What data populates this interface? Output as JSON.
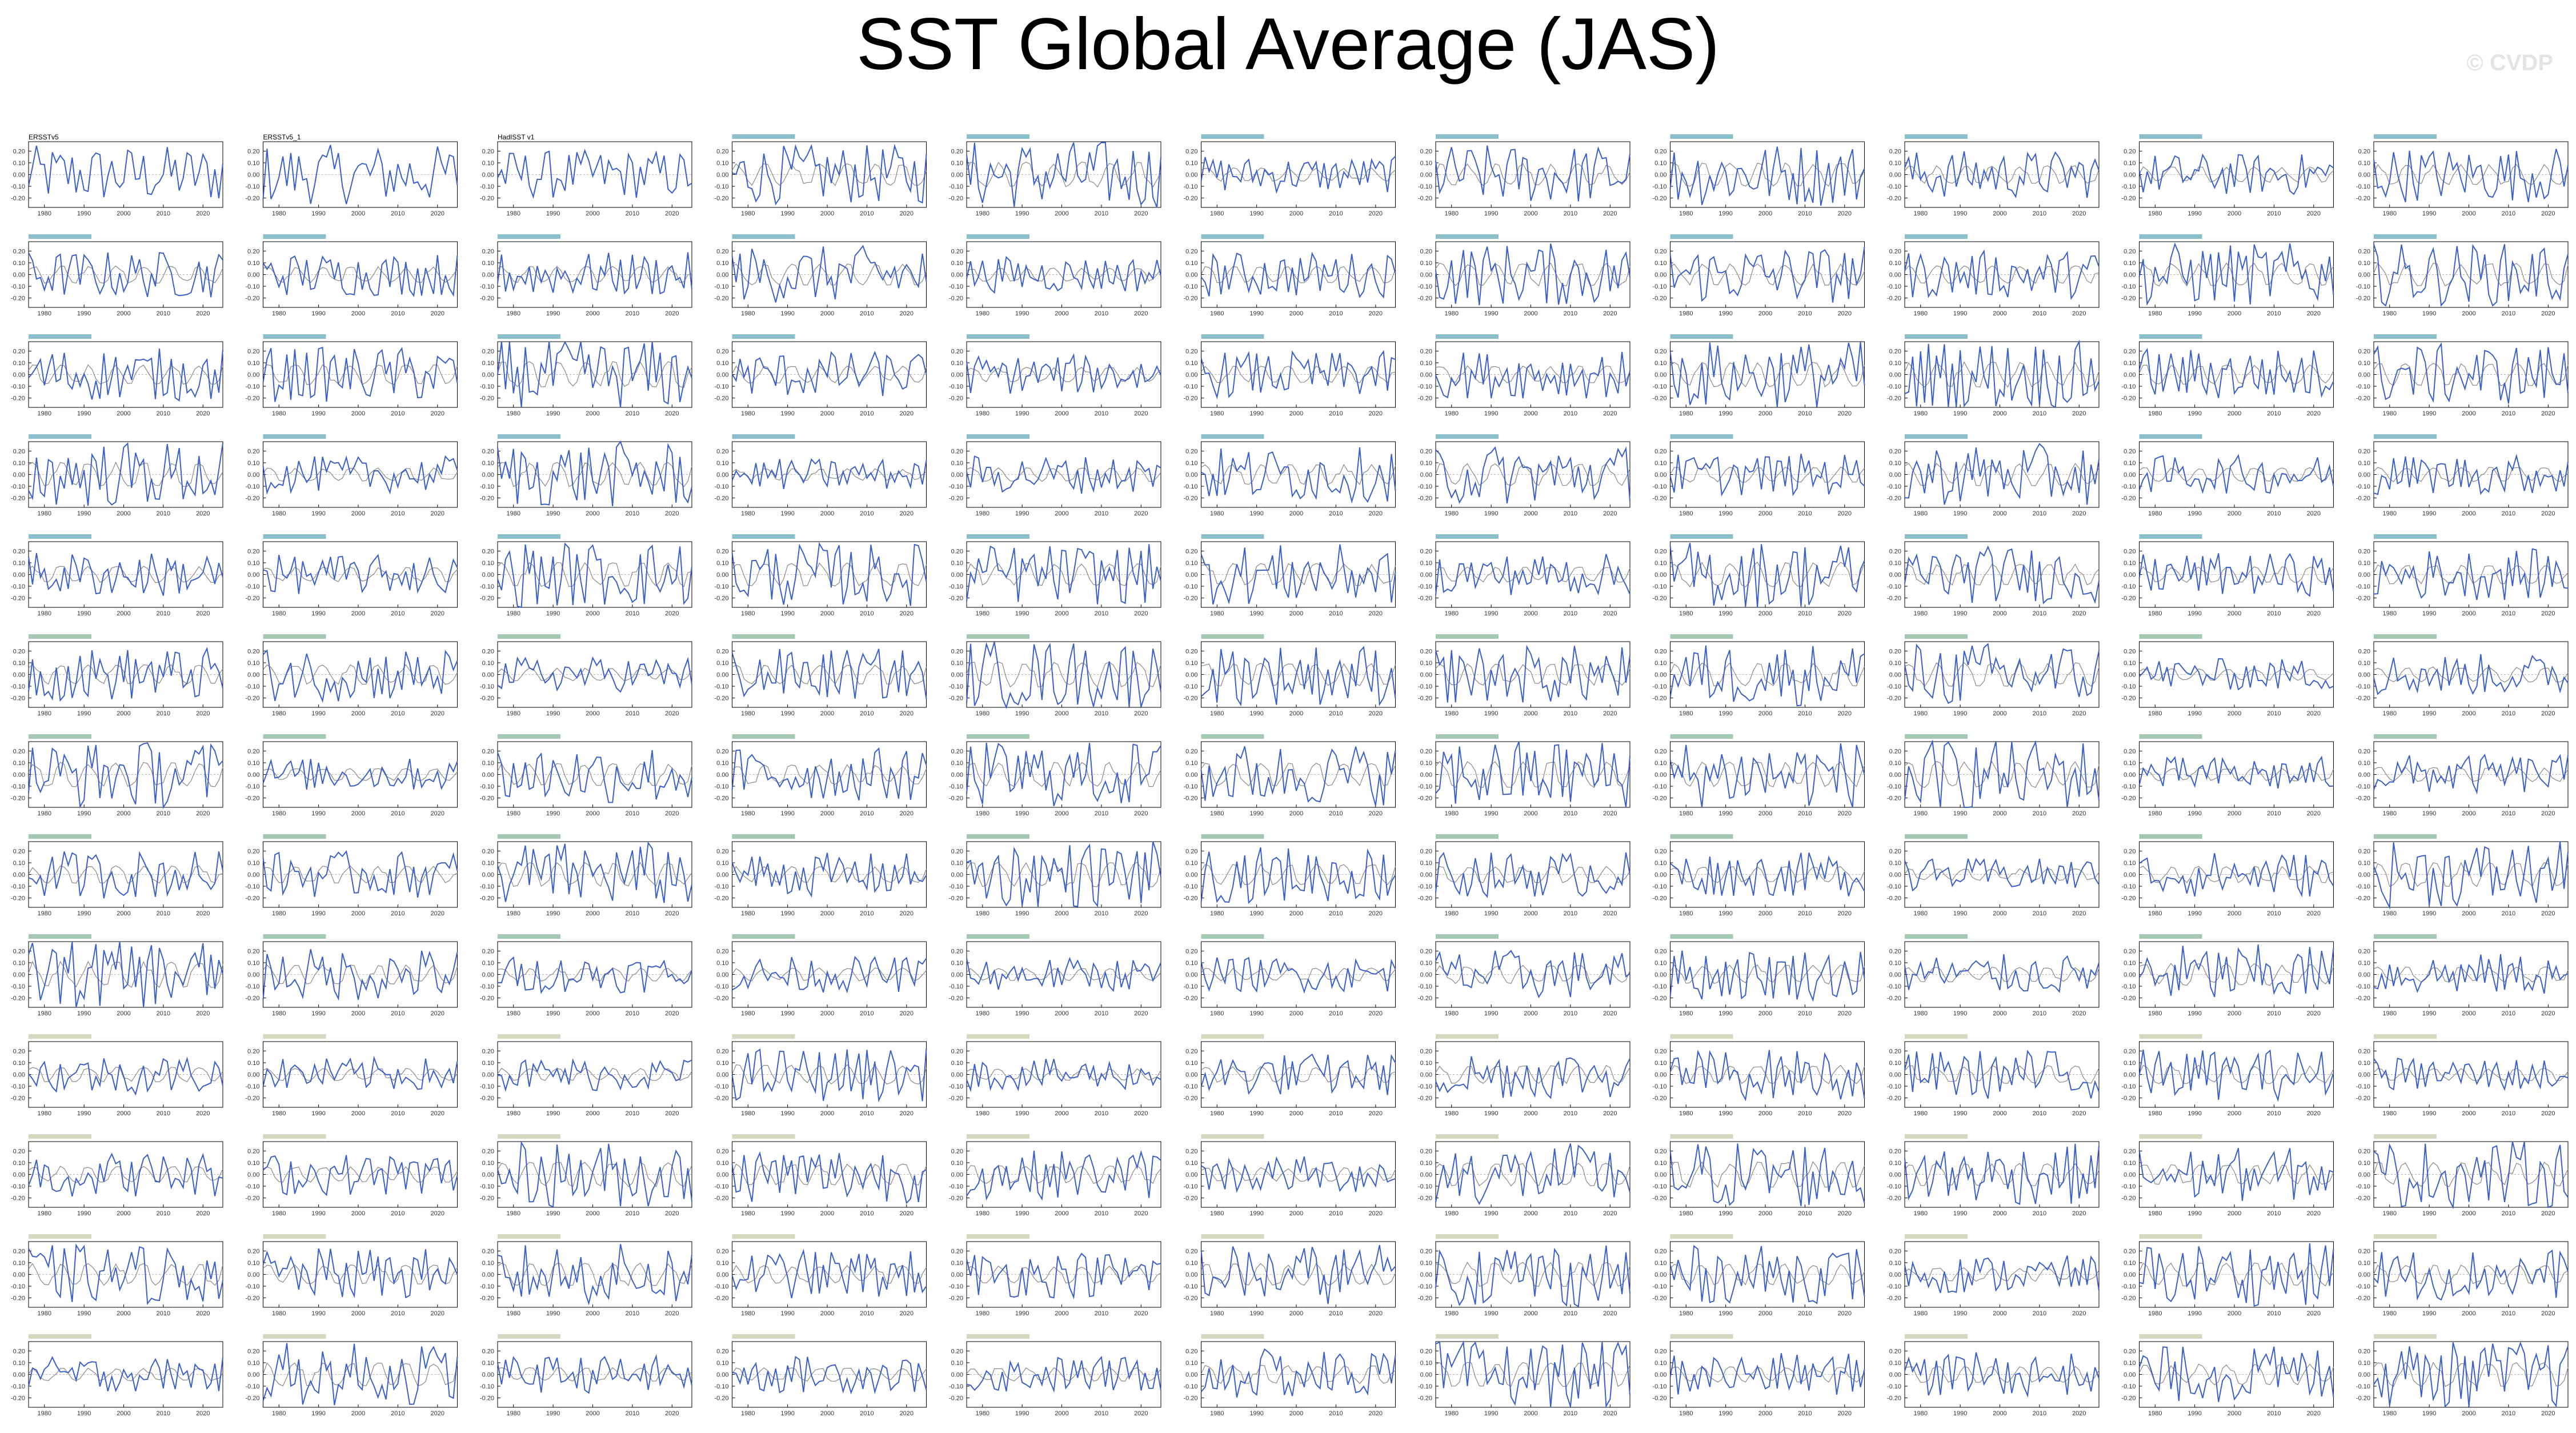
{
  "title": "SST Global Average (JAS)",
  "watermark": "© CVDP",
  "panel_titles_legible": [
    "ERSSTv5",
    "ERSSTv5_1",
    "HadISST v1"
  ],
  "chart_data": {
    "type": "line",
    "title": "SST Global Average (JAS)",
    "grid_rows": 13,
    "grid_cols": 11,
    "x_range": [
      1976,
      2025
    ],
    "x_ticks": [
      1980,
      1990,
      2000,
      2010,
      2020
    ],
    "y_ticks": [
      -0.2,
      -0.1,
      0.0,
      0.1,
      0.2
    ],
    "y_tick_labels": [
      "-0.20",
      "-0.10",
      "0.00",
      "0.10",
      "0.20"
    ],
    "series_colors": {
      "observed": "#3a5fc8",
      "reference": "#888888"
    },
    "title_colors": {
      "observed": "#000000",
      "row_teal": "#2a8aa0",
      "row_green": "#5b9a73",
      "row_olive": "#b5b88a"
    }
  }
}
